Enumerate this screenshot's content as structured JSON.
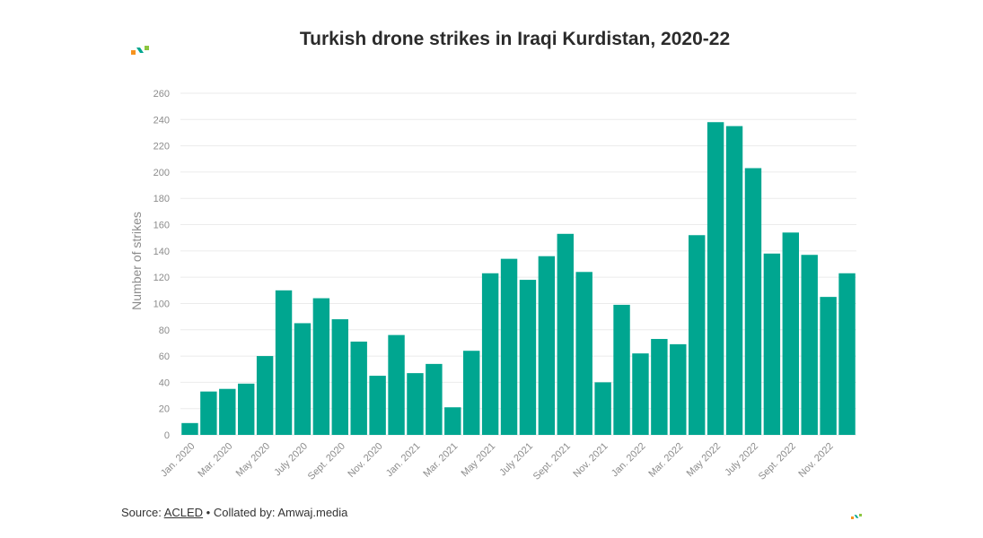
{
  "header": {
    "title": "Turkish drone strikes in Iraqi Kurdistan, 2020-22"
  },
  "footer": {
    "source_prefix": "Source: ",
    "source_link": "ACLED",
    "source_suffix": " • Collated by: Amwaj.media"
  },
  "colors": {
    "bar": "#00a690",
    "grid": "#ebebeb",
    "logo_orange": "#f7931e",
    "logo_teal": "#00a690",
    "logo_green": "#8cc63f"
  },
  "chart_data": {
    "type": "bar",
    "title": "Turkish drone strikes in Iraqi Kurdistan, 2020-22",
    "xlabel": "",
    "ylabel": "Number of strikes",
    "ylim": [
      0,
      260
    ],
    "yticks": [
      0,
      20,
      40,
      60,
      80,
      100,
      120,
      140,
      160,
      180,
      200,
      220,
      240,
      260
    ],
    "grid": true,
    "categories": [
      "Jan. 2020",
      "Feb. 2020",
      "Mar. 2020",
      "Apr. 2020",
      "May 2020",
      "June 2020",
      "July 2020",
      "Aug. 2020",
      "Sept. 2020",
      "Oct. 2020",
      "Nov. 2020",
      "Dec. 2020",
      "Jan. 2021",
      "Feb. 2021",
      "Mar. 2021",
      "Apr. 2021",
      "May 2021",
      "June 2021",
      "July 2021",
      "Aug. 2021",
      "Sept. 2021",
      "Oct. 2021",
      "Nov. 2021",
      "Dec. 2021",
      "Jan. 2022",
      "Feb. 2022",
      "Mar. 2022",
      "Apr. 2022",
      "May 2022",
      "June 2022",
      "July 2022",
      "Aug. 2022",
      "Sept. 2022",
      "Oct. 2022",
      "Nov. 2022",
      "Dec. 2022"
    ],
    "tick_labels": [
      "Jan. 2020",
      "Mar. 2020",
      "May 2020",
      "July 2020",
      "Sept. 2020",
      "Nov. 2020",
      "Jan. 2021",
      "Mar. 2021",
      "May 2021",
      "July 2021",
      "Sept. 2021",
      "Nov. 2021",
      "Jan. 2022",
      "Mar. 2022",
      "May 2022",
      "July 2022",
      "Sept. 2022",
      "Nov. 2022"
    ],
    "values": [
      9,
      33,
      35,
      39,
      60,
      110,
      85,
      104,
      88,
      71,
      45,
      76,
      47,
      54,
      21,
      64,
      123,
      134,
      118,
      136,
      153,
      124,
      40,
      99,
      62,
      73,
      69,
      152,
      238,
      235,
      203,
      138,
      154,
      137,
      105,
      123
    ]
  }
}
